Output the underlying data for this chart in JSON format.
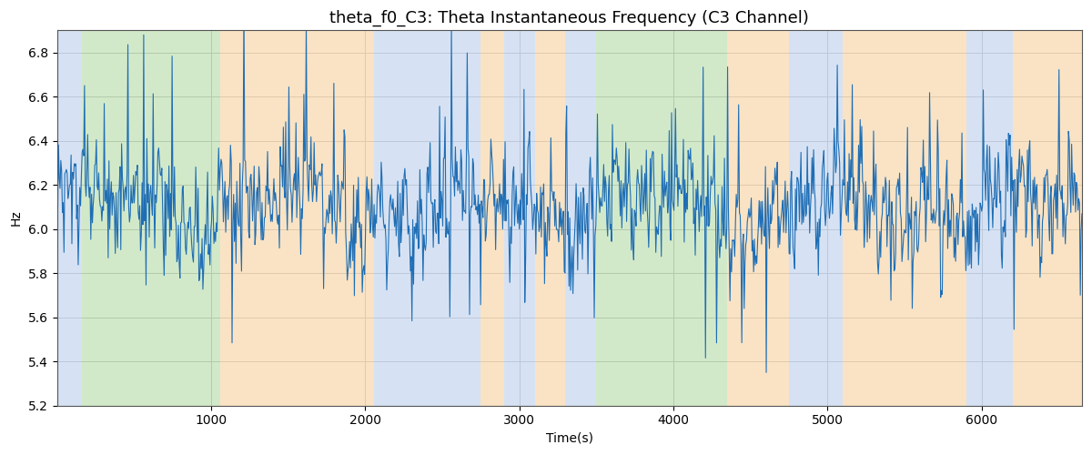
{
  "title": "theta_f0_C3: Theta Instantaneous Frequency (C3 Channel)",
  "xlabel": "Time(s)",
  "ylabel": "Hz",
  "ylim": [
    5.2,
    6.9
  ],
  "xlim": [
    0,
    6650
  ],
  "line_color": "#1f6eb5",
  "line_width": 0.8,
  "bg_color": "white",
  "grid_color": "#cccccc",
  "bands": [
    {
      "start": 0,
      "end": 160,
      "color": "#aec6e8",
      "alpha": 0.5
    },
    {
      "start": 160,
      "end": 1060,
      "color": "#90c978",
      "alpha": 0.4
    },
    {
      "start": 1060,
      "end": 2060,
      "color": "#f5c98a",
      "alpha": 0.5
    },
    {
      "start": 2060,
      "end": 2750,
      "color": "#aec6e8",
      "alpha": 0.5
    },
    {
      "start": 2750,
      "end": 2900,
      "color": "#f5c98a",
      "alpha": 0.5
    },
    {
      "start": 2900,
      "end": 3100,
      "color": "#aec6e8",
      "alpha": 0.5
    },
    {
      "start": 3100,
      "end": 3300,
      "color": "#f5c98a",
      "alpha": 0.5
    },
    {
      "start": 3300,
      "end": 3500,
      "color": "#aec6e8",
      "alpha": 0.5
    },
    {
      "start": 3500,
      "end": 4350,
      "color": "#90c978",
      "alpha": 0.4
    },
    {
      "start": 4350,
      "end": 4750,
      "color": "#f5c98a",
      "alpha": 0.5
    },
    {
      "start": 4750,
      "end": 5100,
      "color": "#aec6e8",
      "alpha": 0.5
    },
    {
      "start": 5100,
      "end": 5900,
      "color": "#f5c98a",
      "alpha": 0.5
    },
    {
      "start": 5900,
      "end": 6200,
      "color": "#aec6e8",
      "alpha": 0.5
    },
    {
      "start": 6200,
      "end": 6650,
      "color": "#f5c98a",
      "alpha": 0.5
    }
  ],
  "seed": 1234,
  "n_points": 1300,
  "mean_freq": 6.1,
  "title_fontsize": 13
}
